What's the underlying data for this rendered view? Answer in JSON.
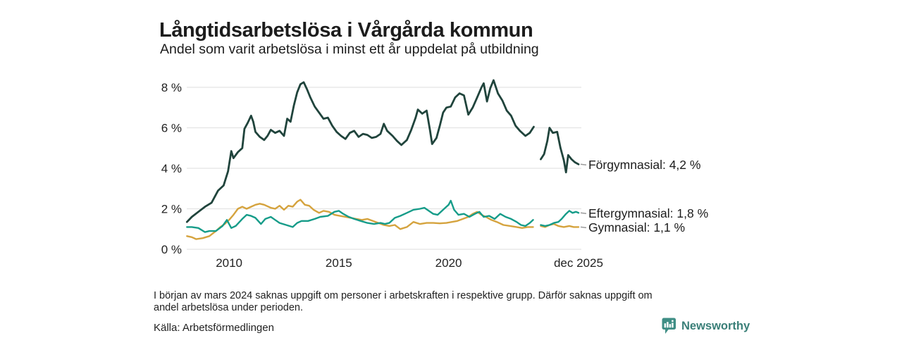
{
  "header": {
    "title": "Långtidsarbetslösa i Vårgårda kommun",
    "subtitle": "Andel som varit arbetslösa i minst ett år uppdelat på utbildning"
  },
  "footnote": {
    "lines": [
      "I början av mars 2024 saknas uppgift om personer i arbetskraften i respektive grupp. Därför saknas uppgift om",
      "andel arbetslösa under perioden."
    ]
  },
  "source": {
    "label": "Källa: Arbetsförmedlingen"
  },
  "branding": {
    "name": "Newsworthy",
    "icon": "newsworthy-bar-chart-bubble-icon",
    "icon_color": "#3f8e85",
    "text_color": "#3a7f78"
  },
  "chart_data": {
    "type": "line",
    "title": "Långtidsarbetslösa i Vårgårda kommun",
    "subtitle": "Andel som varit arbetslösa i minst ett år uppdelat på utbildning",
    "xlabel": "",
    "ylabel": "",
    "grid": true,
    "legend_position": "right-end-labels",
    "style": {
      "grid_color": "#e4e4e4",
      "axis_text_color": "#222222",
      "leader_color": "#9a9a9a",
      "label_text_color": "#1c1c1c"
    },
    "x_axis": {
      "range": [
        2008.07,
        2026.05
      ],
      "ticks": [
        {
          "value": 2010,
          "label": "2010"
        },
        {
          "value": 2015,
          "label": "2015"
        },
        {
          "value": 2020,
          "label": "2020"
        },
        {
          "value": 2025.92,
          "label": "dec 2025"
        }
      ]
    },
    "y_axis": {
      "range": [
        0,
        8
      ],
      "unit": "%",
      "ticks": [
        {
          "value": 0,
          "label": "0 %"
        },
        {
          "value": 2,
          "label": "2 %"
        },
        {
          "value": 4,
          "label": "4 %"
        },
        {
          "value": 6,
          "label": "6 %"
        },
        {
          "value": 8,
          "label": "8 %"
        }
      ]
    },
    "series": [
      {
        "id": "gymnasial",
        "name": "Gymnasial",
        "end_label": "Gymnasial: 1,1 %",
        "end_value": 1.1,
        "color": "#d5a33e",
        "width": 2.4,
        "points": [
          [
            2008.08,
            0.65
          ],
          [
            2008.3,
            0.6
          ],
          [
            2008.5,
            0.5
          ],
          [
            2008.8,
            0.55
          ],
          [
            2009.1,
            0.65
          ],
          [
            2009.4,
            0.9
          ],
          [
            2009.6,
            1.1
          ],
          [
            2009.8,
            1.25
          ],
          [
            2010.0,
            1.45
          ],
          [
            2010.2,
            1.7
          ],
          [
            2010.4,
            2.0
          ],
          [
            2010.6,
            2.1
          ],
          [
            2010.8,
            2.0
          ],
          [
            2011.0,
            2.1
          ],
          [
            2011.2,
            2.2
          ],
          [
            2011.4,
            2.25
          ],
          [
            2011.6,
            2.2
          ],
          [
            2011.9,
            2.05
          ],
          [
            2012.1,
            2.0
          ],
          [
            2012.3,
            2.15
          ],
          [
            2012.5,
            1.95
          ],
          [
            2012.7,
            2.15
          ],
          [
            2012.9,
            2.1
          ],
          [
            2013.1,
            2.35
          ],
          [
            2013.25,
            2.45
          ],
          [
            2013.45,
            2.2
          ],
          [
            2013.65,
            2.15
          ],
          [
            2013.85,
            1.95
          ],
          [
            2014.1,
            1.8
          ],
          [
            2014.3,
            1.9
          ],
          [
            2014.55,
            1.85
          ],
          [
            2014.8,
            1.7
          ],
          [
            2015.05,
            1.65
          ],
          [
            2015.3,
            1.6
          ],
          [
            2015.55,
            1.55
          ],
          [
            2015.8,
            1.5
          ],
          [
            2016.05,
            1.45
          ],
          [
            2016.3,
            1.5
          ],
          [
            2016.55,
            1.4
          ],
          [
            2016.8,
            1.3
          ],
          [
            2017.05,
            1.2
          ],
          [
            2017.3,
            1.15
          ],
          [
            2017.55,
            1.2
          ],
          [
            2017.8,
            1.0
          ],
          [
            2018.1,
            1.1
          ],
          [
            2018.4,
            1.35
          ],
          [
            2018.7,
            1.25
          ],
          [
            2019.0,
            1.3
          ],
          [
            2019.3,
            1.3
          ],
          [
            2019.6,
            1.28
          ],
          [
            2019.9,
            1.3
          ],
          [
            2020.15,
            1.35
          ],
          [
            2020.4,
            1.4
          ],
          [
            2020.65,
            1.5
          ],
          [
            2020.9,
            1.6
          ],
          [
            2021.1,
            1.75
          ],
          [
            2021.3,
            1.85
          ],
          [
            2021.5,
            1.7
          ],
          [
            2021.7,
            1.6
          ],
          [
            2021.95,
            1.45
          ],
          [
            2022.2,
            1.35
          ],
          [
            2022.5,
            1.2
          ],
          [
            2022.8,
            1.15
          ],
          [
            2023.1,
            1.1
          ],
          [
            2023.35,
            1.05
          ],
          [
            2023.6,
            1.1
          ],
          [
            2023.85,
            1.1
          ],
          [
            2024.0,
            null
          ],
          [
            2024.2,
            1.15
          ],
          [
            2024.4,
            1.1
          ],
          [
            2024.6,
            1.2
          ],
          [
            2024.8,
            1.25
          ],
          [
            2025.0,
            1.15
          ],
          [
            2025.25,
            1.1
          ],
          [
            2025.5,
            1.15
          ],
          [
            2025.7,
            1.1
          ],
          [
            2025.92,
            1.1
          ]
        ]
      },
      {
        "id": "eftergymnasial",
        "name": "Eftergymnasial",
        "end_label": "Eftergymnasial: 1,8 %",
        "end_value": 1.8,
        "color": "#169c89",
        "width": 2.4,
        "points": [
          [
            2008.08,
            1.1
          ],
          [
            2008.3,
            1.1
          ],
          [
            2008.6,
            1.05
          ],
          [
            2008.9,
            0.85
          ],
          [
            2009.1,
            0.9
          ],
          [
            2009.4,
            0.9
          ],
          [
            2009.7,
            1.15
          ],
          [
            2009.9,
            1.45
          ],
          [
            2010.1,
            1.05
          ],
          [
            2010.3,
            1.15
          ],
          [
            2010.6,
            1.5
          ],
          [
            2010.8,
            1.7
          ],
          [
            2011.0,
            1.65
          ],
          [
            2011.2,
            1.55
          ],
          [
            2011.45,
            1.25
          ],
          [
            2011.65,
            1.5
          ],
          [
            2011.9,
            1.6
          ],
          [
            2012.1,
            1.45
          ],
          [
            2012.3,
            1.3
          ],
          [
            2012.6,
            1.2
          ],
          [
            2012.9,
            1.1
          ],
          [
            2013.1,
            1.3
          ],
          [
            2013.3,
            1.4
          ],
          [
            2013.6,
            1.4
          ],
          [
            2013.9,
            1.5
          ],
          [
            2014.15,
            1.6
          ],
          [
            2014.5,
            1.65
          ],
          [
            2014.8,
            1.85
          ],
          [
            2015.0,
            1.9
          ],
          [
            2015.2,
            1.75
          ],
          [
            2015.45,
            1.6
          ],
          [
            2015.7,
            1.5
          ],
          [
            2016.0,
            1.4
          ],
          [
            2016.3,
            1.3
          ],
          [
            2016.6,
            1.25
          ],
          [
            2016.9,
            1.3
          ],
          [
            2017.1,
            1.25
          ],
          [
            2017.3,
            1.3
          ],
          [
            2017.55,
            1.55
          ],
          [
            2017.8,
            1.65
          ],
          [
            2018.1,
            1.8
          ],
          [
            2018.4,
            1.95
          ],
          [
            2018.7,
            2.0
          ],
          [
            2018.9,
            2.05
          ],
          [
            2019.1,
            1.9
          ],
          [
            2019.3,
            1.75
          ],
          [
            2019.5,
            1.7
          ],
          [
            2019.8,
            2.0
          ],
          [
            2020.0,
            2.2
          ],
          [
            2020.1,
            2.4
          ],
          [
            2020.25,
            1.95
          ],
          [
            2020.45,
            1.7
          ],
          [
            2020.7,
            1.75
          ],
          [
            2020.95,
            1.6
          ],
          [
            2021.2,
            1.75
          ],
          [
            2021.4,
            1.85
          ],
          [
            2021.6,
            1.6
          ],
          [
            2021.85,
            1.65
          ],
          [
            2022.1,
            1.5
          ],
          [
            2022.35,
            1.75
          ],
          [
            2022.6,
            1.6
          ],
          [
            2022.85,
            1.5
          ],
          [
            2023.1,
            1.35
          ],
          [
            2023.3,
            1.2
          ],
          [
            2023.5,
            1.15
          ],
          [
            2023.7,
            1.3
          ],
          [
            2023.85,
            1.45
          ],
          [
            2024.0,
            null
          ],
          [
            2024.2,
            1.2
          ],
          [
            2024.4,
            1.15
          ],
          [
            2024.6,
            1.2
          ],
          [
            2024.8,
            1.3
          ],
          [
            2025.0,
            1.35
          ],
          [
            2025.15,
            1.5
          ],
          [
            2025.35,
            1.75
          ],
          [
            2025.5,
            1.9
          ],
          [
            2025.65,
            1.8
          ],
          [
            2025.8,
            1.85
          ],
          [
            2025.92,
            1.8
          ]
        ]
      },
      {
        "id": "forgymnasial",
        "name": "Förgymnasial",
        "end_label": "Förgymnasial: 4,2 %",
        "end_value": 4.2,
        "color": "#20443c",
        "width": 2.8,
        "points": [
          [
            2008.08,
            1.35
          ],
          [
            2008.3,
            1.6
          ],
          [
            2008.6,
            1.85
          ],
          [
            2008.9,
            2.1
          ],
          [
            2009.2,
            2.3
          ],
          [
            2009.5,
            2.9
          ],
          [
            2009.75,
            3.15
          ],
          [
            2009.95,
            3.85
          ],
          [
            2010.1,
            4.85
          ],
          [
            2010.2,
            4.5
          ],
          [
            2010.4,
            4.8
          ],
          [
            2010.6,
            5.0
          ],
          [
            2010.7,
            5.95
          ],
          [
            2010.85,
            6.25
          ],
          [
            2011.0,
            6.6
          ],
          [
            2011.1,
            6.3
          ],
          [
            2011.2,
            5.8
          ],
          [
            2011.4,
            5.55
          ],
          [
            2011.6,
            5.4
          ],
          [
            2011.75,
            5.6
          ],
          [
            2011.9,
            5.9
          ],
          [
            2012.1,
            5.75
          ],
          [
            2012.3,
            5.85
          ],
          [
            2012.5,
            5.6
          ],
          [
            2012.65,
            6.45
          ],
          [
            2012.8,
            6.3
          ],
          [
            2012.95,
            7.1
          ],
          [
            2013.1,
            7.75
          ],
          [
            2013.25,
            8.15
          ],
          [
            2013.4,
            8.25
          ],
          [
            2013.55,
            7.9
          ],
          [
            2013.7,
            7.5
          ],
          [
            2013.9,
            7.05
          ],
          [
            2014.1,
            6.75
          ],
          [
            2014.3,
            6.45
          ],
          [
            2014.5,
            6.5
          ],
          [
            2014.7,
            6.1
          ],
          [
            2014.9,
            5.8
          ],
          [
            2015.1,
            5.6
          ],
          [
            2015.3,
            5.45
          ],
          [
            2015.5,
            5.75
          ],
          [
            2015.7,
            5.85
          ],
          [
            2015.9,
            5.55
          ],
          [
            2016.1,
            5.7
          ],
          [
            2016.3,
            5.65
          ],
          [
            2016.5,
            5.5
          ],
          [
            2016.7,
            5.55
          ],
          [
            2016.9,
            5.7
          ],
          [
            2017.05,
            6.2
          ],
          [
            2017.2,
            5.85
          ],
          [
            2017.45,
            5.6
          ],
          [
            2017.65,
            5.35
          ],
          [
            2017.85,
            5.15
          ],
          [
            2018.1,
            5.4
          ],
          [
            2018.3,
            5.9
          ],
          [
            2018.5,
            6.5
          ],
          [
            2018.6,
            6.9
          ],
          [
            2018.8,
            6.7
          ],
          [
            2019.0,
            6.85
          ],
          [
            2019.15,
            5.9
          ],
          [
            2019.25,
            5.2
          ],
          [
            2019.45,
            5.5
          ],
          [
            2019.6,
            6.1
          ],
          [
            2019.75,
            6.75
          ],
          [
            2019.9,
            7.0
          ],
          [
            2020.1,
            7.05
          ],
          [
            2020.3,
            7.5
          ],
          [
            2020.5,
            7.7
          ],
          [
            2020.7,
            7.6
          ],
          [
            2020.9,
            6.65
          ],
          [
            2021.1,
            7.0
          ],
          [
            2021.3,
            7.5
          ],
          [
            2021.5,
            8.0
          ],
          [
            2021.6,
            8.2
          ],
          [
            2021.75,
            7.3
          ],
          [
            2021.9,
            7.95
          ],
          [
            2022.05,
            8.35
          ],
          [
            2022.25,
            7.7
          ],
          [
            2022.45,
            7.35
          ],
          [
            2022.65,
            6.85
          ],
          [
            2022.85,
            6.6
          ],
          [
            2023.05,
            6.1
          ],
          [
            2023.25,
            5.85
          ],
          [
            2023.5,
            5.6
          ],
          [
            2023.7,
            5.75
          ],
          [
            2023.88,
            6.05
          ],
          [
            2024.0,
            null
          ],
          [
            2024.2,
            4.45
          ],
          [
            2024.35,
            4.7
          ],
          [
            2024.5,
            5.35
          ],
          [
            2024.6,
            6.0
          ],
          [
            2024.75,
            5.75
          ],
          [
            2024.95,
            5.8
          ],
          [
            2025.1,
            5.0
          ],
          [
            2025.25,
            4.4
          ],
          [
            2025.35,
            3.8
          ],
          [
            2025.45,
            4.65
          ],
          [
            2025.6,
            4.45
          ],
          [
            2025.75,
            4.3
          ],
          [
            2025.92,
            4.2
          ]
        ]
      }
    ]
  }
}
